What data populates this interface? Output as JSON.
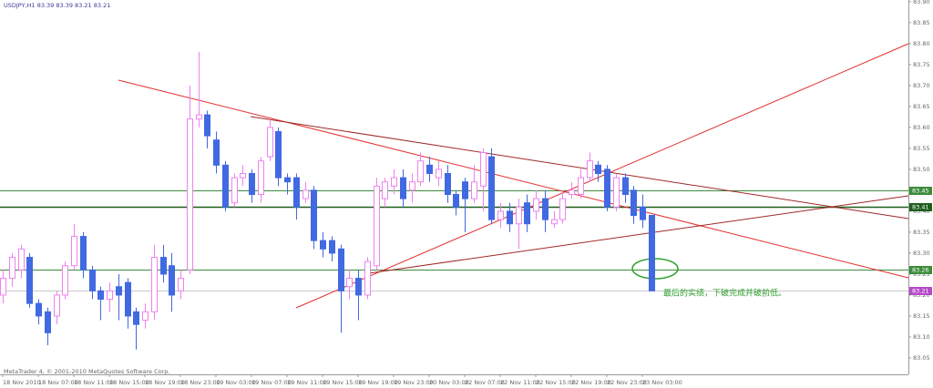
{
  "chart_data": {
    "type": "candlestick",
    "title": "USDJPY,H1  83.39 83.39 83.21 83.21",
    "footer": "MetaTrader 4, © 2001-2010 MetaQuotes Software Corp.",
    "annotation": "最后的实绩，下破完成并破前低。",
    "categories": [
      "18 Nov 2010",
      null,
      null,
      null,
      "18 Nov 07:00",
      null,
      null,
      null,
      "18 Nov 11:00",
      null,
      null,
      null,
      "18 Nov 15:00",
      null,
      null,
      null,
      "18 Nov 19:00",
      null,
      null,
      null,
      "18 Nov 23:00",
      null,
      null,
      null,
      "19 Nov 03:00",
      null,
      null,
      null,
      "19 Nov 07:00",
      null,
      null,
      null,
      "19 Nov 11:00",
      null,
      null,
      null,
      "19 Nov 15:00",
      null,
      null,
      null,
      "19 Nov 19:00",
      null,
      null,
      null,
      "19 Nov 23:00",
      null,
      null,
      null,
      "20 Nov 03:00",
      null,
      null,
      null,
      "22 Nov 07:00",
      null,
      null,
      null,
      "22 Nov 11:00",
      null,
      null,
      null,
      "22 Nov 15:00",
      null,
      null,
      null,
      "22 Nov 19:00",
      null,
      null,
      null,
      "22 Nov 23:00",
      null,
      null,
      null,
      "23 Nov 03:00",
      null
    ],
    "open": [
      83.2,
      83.24,
      83.26,
      83.29,
      83.18,
      83.16,
      83.15,
      83.2,
      83.27,
      83.34,
      83.26,
      83.21,
      83.19,
      83.22,
      83.23,
      83.16,
      83.14,
      83.16,
      83.29,
      83.27,
      83.21,
      83.26,
      83.62,
      83.63,
      83.57,
      83.51,
      83.42,
      83.48,
      83.49,
      83.44,
      83.53,
      83.59,
      83.48,
      83.48,
      83.43,
      83.45,
      83.33,
      83.33,
      83.31,
      83.22,
      83.24,
      83.2,
      83.27,
      83.43,
      83.46,
      83.48,
      83.45,
      83.47,
      83.51,
      83.48,
      83.49,
      83.44,
      83.47,
      83.43,
      83.46,
      83.53,
      83.38,
      83.4,
      83.37,
      83.42,
      83.4,
      83.43,
      83.37,
      83.38,
      83.44,
      83.44,
      83.48,
      83.51,
      83.5,
      83.41,
      83.48,
      83.45,
      83.41,
      83.39
    ],
    "high": [
      83.26,
      83.3,
      83.32,
      83.3,
      83.19,
      83.17,
      83.21,
      83.28,
      83.37,
      83.35,
      83.27,
      83.22,
      83.23,
      83.25,
      83.24,
      83.17,
      83.18,
      83.32,
      83.32,
      83.3,
      83.26,
      83.7,
      83.78,
      83.64,
      83.59,
      83.52,
      83.49,
      83.51,
      83.5,
      83.53,
      83.62,
      83.6,
      83.49,
      83.49,
      83.47,
      83.46,
      83.35,
      83.34,
      83.32,
      83.26,
      83.26,
      83.29,
      83.48,
      83.48,
      83.5,
      83.5,
      83.49,
      83.54,
      83.53,
      83.52,
      83.51,
      83.45,
      83.48,
      83.51,
      83.55,
      83.55,
      83.42,
      83.42,
      83.43,
      83.44,
      83.45,
      83.45,
      83.4,
      83.45,
      83.47,
      83.5,
      83.54,
      83.52,
      83.51,
      83.49,
      83.49,
      83.46,
      83.44,
      83.39
    ],
    "low": [
      83.18,
      83.22,
      83.24,
      83.17,
      83.13,
      83.08,
      83.13,
      83.19,
      83.26,
      83.24,
      83.19,
      83.14,
      83.16,
      83.14,
      83.12,
      83.07,
      83.12,
      83.14,
      83.23,
      83.16,
      83.19,
      83.25,
      83.6,
      83.55,
      83.49,
      83.4,
      83.41,
      83.46,
      83.42,
      83.42,
      83.52,
      83.46,
      83.44,
      83.38,
      83.42,
      83.31,
      83.29,
      83.28,
      83.11,
      83.19,
      83.14,
      83.19,
      83.26,
      83.41,
      83.44,
      83.41,
      83.42,
      83.46,
      83.47,
      83.46,
      83.42,
      83.39,
      83.35,
      83.42,
      83.4,
      83.37,
      83.36,
      83.35,
      83.31,
      83.35,
      83.38,
      83.35,
      83.36,
      83.37,
      83.43,
      83.43,
      83.47,
      83.47,
      83.4,
      83.4,
      83.42,
      83.37,
      83.36,
      83.21
    ],
    "close": [
      83.24,
      83.29,
      83.31,
      83.18,
      83.15,
      83.11,
      83.2,
      83.27,
      83.34,
      83.26,
      83.21,
      83.19,
      83.21,
      83.2,
      83.15,
      83.13,
      83.16,
      83.29,
      83.25,
      83.2,
      83.24,
      83.62,
      83.63,
      83.58,
      83.51,
      83.41,
      83.48,
      83.49,
      83.44,
      83.52,
      83.6,
      83.48,
      83.47,
      83.41,
      83.45,
      83.33,
      83.31,
      83.3,
      83.21,
      83.24,
      83.2,
      83.28,
      83.46,
      83.47,
      83.48,
      83.43,
      83.47,
      83.52,
      83.49,
      83.5,
      83.44,
      83.41,
      83.43,
      83.47,
      83.54,
      83.38,
      83.4,
      83.37,
      83.41,
      83.37,
      83.43,
      83.38,
      83.38,
      83.43,
      83.45,
      83.48,
      83.52,
      83.49,
      83.41,
      83.48,
      83.44,
      83.39,
      83.38,
      83.21
    ],
    "up_color": "#ee82ee",
    "down_color": "#4169e1",
    "ylim": [
      83.013,
      83.904
    ],
    "yticks": [
      83.05,
      {
        "value": 83.1,
        "label": "83.10"
      },
      83.15,
      {
        "value": 83.2,
        "label": "83.20"
      },
      83.25,
      {
        "value": 83.3,
        "label": "83.30"
      },
      83.35,
      {
        "value": 83.4,
        "label": "83.40"
      },
      83.45,
      {
        "value": 83.5,
        "label": "83.50"
      },
      83.55,
      {
        "value": 83.6,
        "label": "83.60"
      },
      83.65,
      {
        "value": 83.7,
        "label": "83.70"
      },
      83.75,
      {
        "value": 83.8,
        "label": "83.80"
      },
      83.85,
      {
        "value": 83.9,
        "label": "83.90"
      }
    ],
    "hlines": [
      {
        "value": 83.45,
        "color": "#3c8c3c"
      },
      {
        "value": 83.41,
        "color": "#1e5e1e"
      },
      {
        "value": 83.26,
        "color": "#3c8c3c"
      },
      {
        "value": 83.21,
        "color": "#c8c8c8"
      }
    ]
  }
}
